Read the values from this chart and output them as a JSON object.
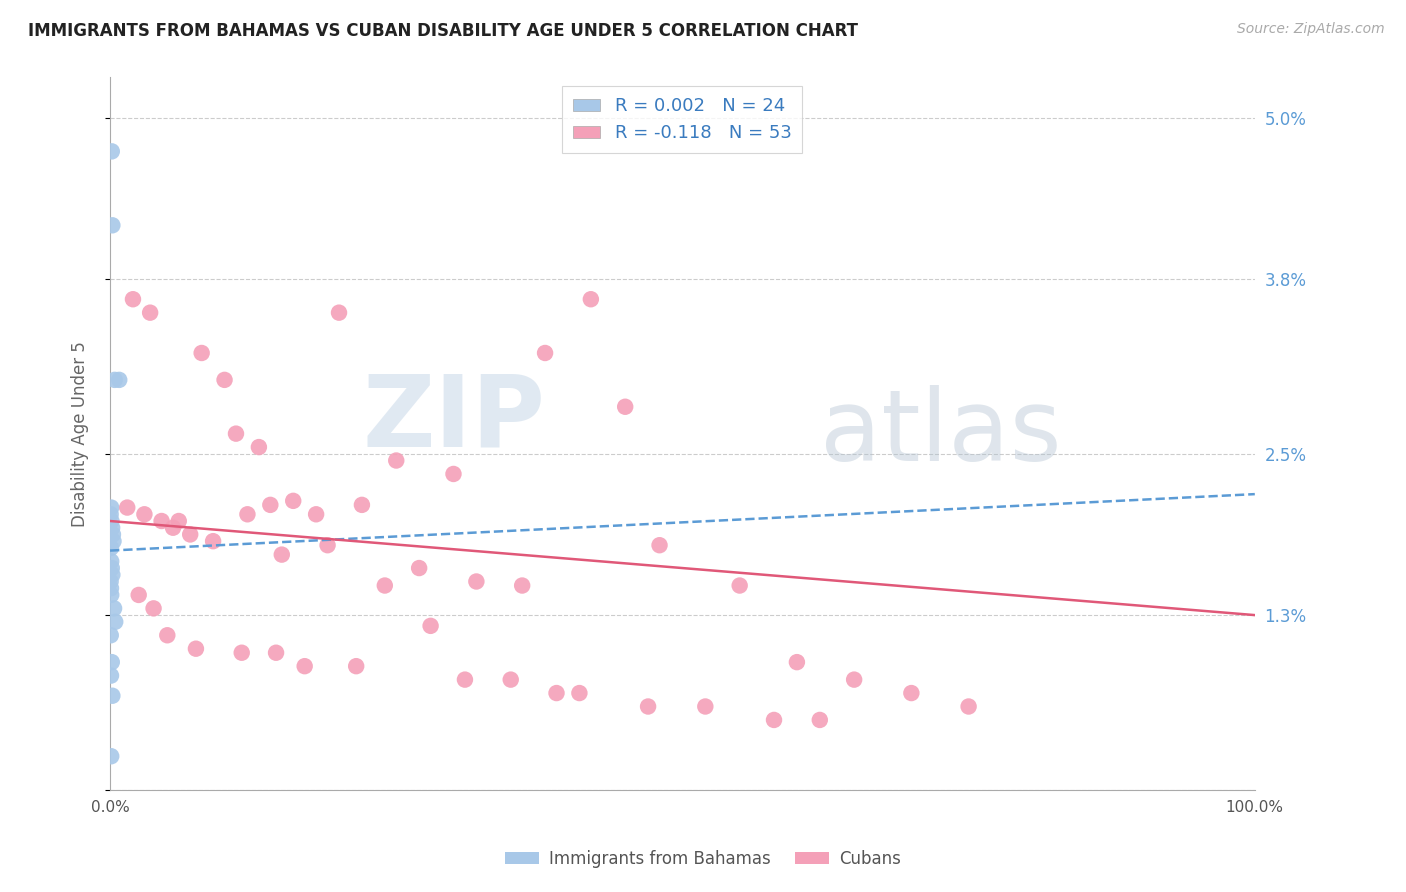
{
  "title": "IMMIGRANTS FROM BAHAMAS VS CUBAN DISABILITY AGE UNDER 5 CORRELATION CHART",
  "source": "Source: ZipAtlas.com",
  "ylabel": "Disability Age Under 5",
  "xlim": [
    0,
    100
  ],
  "ylim": [
    0,
    5.3
  ],
  "yticks": [
    0,
    1.3,
    2.5,
    3.8,
    5.0
  ],
  "xticks": [
    0,
    100
  ],
  "xtick_labels": [
    "0.0%",
    "100.0%"
  ],
  "ytick_labels": [
    "",
    "1.3%",
    "2.5%",
    "3.8%",
    "5.0%"
  ],
  "bahamas_R": 0.002,
  "bahamas_N": 24,
  "cuban_R": -0.118,
  "cuban_N": 53,
  "bahamas_color": "#a8c8e8",
  "cuban_color": "#f4a0b8",
  "bahamas_trend_color": "#5b9bd5",
  "cuban_trend_color": "#e05878",
  "background_color": "#ffffff",
  "grid_color": "#cccccc",
  "watermark_zip": "ZIP",
  "watermark_atlas": "atlas",
  "legend_label_blue": "R = 0.002   N = 24",
  "legend_label_pink": "R = -0.118   N = 53",
  "legend_series_bahamas": "Immigrants from Bahamas",
  "legend_series_cubans": "Cubans",
  "bahamas_x": [
    0.15,
    0.2,
    0.8,
    0.4,
    0.1,
    0.05,
    0.12,
    0.18,
    0.25,
    0.3,
    0.08,
    0.1,
    0.15,
    0.2,
    0.05,
    0.08,
    0.1,
    0.35,
    0.45,
    0.06,
    0.15,
    0.08,
    0.2,
    0.1
  ],
  "bahamas_y": [
    4.75,
    4.2,
    3.05,
    3.05,
    2.1,
    2.05,
    2.0,
    1.95,
    1.9,
    1.85,
    1.8,
    1.7,
    1.65,
    1.6,
    1.55,
    1.5,
    1.45,
    1.35,
    1.25,
    1.15,
    0.95,
    0.85,
    0.7,
    0.25
  ],
  "cuban_x": [
    2.0,
    3.5,
    20.0,
    8.0,
    10.0,
    1.5,
    3.0,
    6.0,
    12.0,
    16.0,
    14.0,
    18.0,
    38.0,
    42.0,
    45.0,
    25.0,
    30.0,
    4.5,
    5.5,
    7.0,
    9.0,
    11.0,
    13.0,
    15.0,
    19.0,
    22.0,
    27.0,
    32.0,
    36.0,
    48.0,
    55.0,
    60.0,
    65.0,
    70.0,
    75.0,
    2.5,
    3.8,
    5.0,
    7.5,
    11.5,
    14.5,
    17.0,
    21.5,
    24.0,
    28.0,
    31.0,
    35.0,
    39.0,
    41.0,
    47.0,
    52.0,
    58.0,
    62.0
  ],
  "cuban_y": [
    3.65,
    3.55,
    3.55,
    3.25,
    3.05,
    2.1,
    2.05,
    2.0,
    2.05,
    2.15,
    2.12,
    2.05,
    3.25,
    3.65,
    2.85,
    2.45,
    2.35,
    2.0,
    1.95,
    1.9,
    1.85,
    2.65,
    2.55,
    1.75,
    1.82,
    2.12,
    1.65,
    1.55,
    1.52,
    1.82,
    1.52,
    0.95,
    0.82,
    0.72,
    0.62,
    1.45,
    1.35,
    1.15,
    1.05,
    1.02,
    1.02,
    0.92,
    0.92,
    1.52,
    1.22,
    0.82,
    0.82,
    0.72,
    0.72,
    0.62,
    0.62,
    0.52,
    0.52
  ],
  "trend_x_start": 0,
  "trend_x_end": 100,
  "bahamas_trend_y_start": 1.78,
  "bahamas_trend_y_end": 2.2,
  "cuban_trend_y_start": 2.0,
  "cuban_trend_y_end": 1.3
}
